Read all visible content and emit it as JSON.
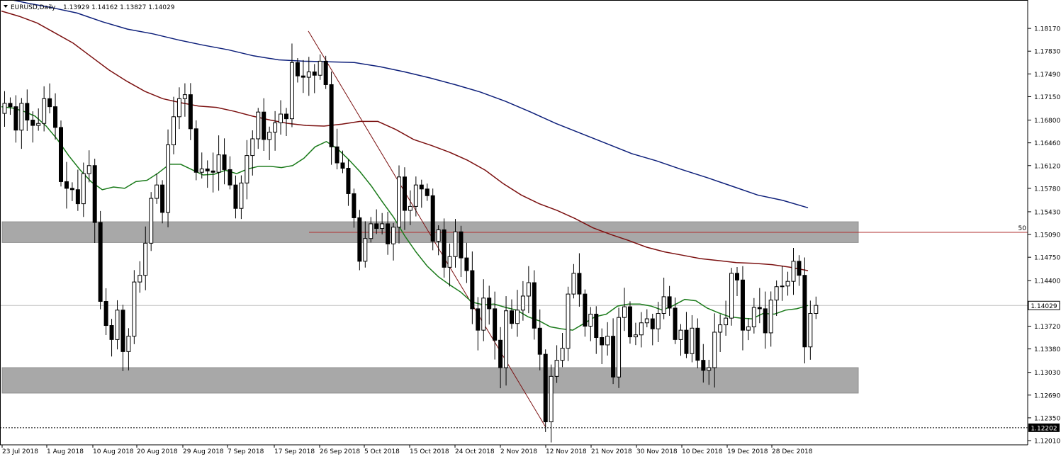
{
  "header": {
    "symbol_label": "EURUSD,Daily",
    "ohlc_label": "1.13929 1.14162 1.13827 1.14029"
  },
  "chart_data": {
    "type": "candlestick",
    "symbol": "EURUSD",
    "timeframe": "Daily",
    "ylim": [
      1.1201,
      1.1851
    ],
    "grid": false,
    "yticks": [
      "1.18170",
      "1.17830",
      "1.17490",
      "1.17150",
      "1.16800",
      "1.16460",
      "1.16120",
      "1.15780",
      "1.15430",
      "1.15090",
      "1.14750",
      "1.14400",
      "1.14060",
      "1.13720",
      "1.13380",
      "1.13030",
      "1.12690",
      "1.12350",
      "1.12010"
    ],
    "xticks": [
      "23 Jul 2018",
      "1 Aug 2018",
      "10 Aug 2018",
      "20 Aug 2018",
      "29 Aug 2018",
      "7 Sep 2018",
      "17 Sep 2018",
      "26 Sep 2018",
      "5 Oct 2018",
      "15 Oct 2018",
      "24 Oct 2018",
      "2 Nov 2018",
      "12 Nov 2018",
      "21 Nov 2018",
      "30 Nov 2018",
      "10 Dec 2018",
      "19 Dec 2018",
      "28 Dec 2018"
    ],
    "current_price": "1.14029",
    "low_marker": "1.12202",
    "fib_label": "50",
    "last_candle": {
      "open": 1.13929,
      "high": 1.14162,
      "low": 1.13827,
      "close": 1.14029
    },
    "zones": [
      {
        "top": 1.1528,
        "bottom": 1.1497
      },
      {
        "top": 1.131,
        "bottom": 1.1272
      }
    ],
    "fib_level": 1.15122,
    "trendline": [
      [
        1.1813,
        1
      ],
      [
        1.1221,
        0
      ]
    ],
    "closes": [
      1.1705,
      1.17,
      1.1665,
      1.1705,
      1.168,
      1.1672,
      1.1675,
      1.1712,
      1.17,
      1.1669,
      1.1588,
      1.1578,
      1.1576,
      1.1555,
      1.16,
      1.1612,
      1.1527,
      1.1409,
      1.1373,
      1.1352,
      1.1396,
      1.1334,
      1.1357,
      1.1438,
      1.1448,
      1.1496,
      1.1563,
      1.1583,
      1.1542,
      1.1643,
      1.1685,
      1.1712,
      1.1718,
      1.1667,
      1.1602,
      1.1607,
      1.1604,
      1.1602,
      1.1628,
      1.1606,
      1.1583,
      1.1548,
      1.1586,
      1.1627,
      1.1652,
      1.1692,
      1.1651,
      1.1662,
      1.1676,
      1.1689,
      1.1682,
      1.1766,
      1.1746,
      1.1744,
      1.1752,
      1.1747,
      1.1768,
      1.1733,
      1.164,
      1.1616,
      1.1608,
      1.157,
      1.1534,
      1.1469,
      1.1503,
      1.1525,
      1.1518,
      1.1525,
      1.1495,
      1.152,
      1.1595,
      1.1545,
      1.1551,
      1.1583,
      1.1577,
      1.1567,
      1.1499,
      1.1516,
      1.146,
      1.1476,
      1.1513,
      1.1474,
      1.1455,
      1.1398,
      1.1366,
      1.1414,
      1.1398,
      1.1351,
      1.131,
      1.1395,
      1.1376,
      1.1396,
      1.1417,
      1.1437,
      1.1369,
      1.133,
      1.1229,
      1.1297,
      1.1321,
      1.1339,
      1.142,
      1.1451,
      1.142,
      1.1372,
      1.139,
      1.1355,
      1.1344,
      1.1357,
      1.1296,
      1.1385,
      1.1401,
      1.1356,
      1.1359,
      1.1377,
      1.1383,
      1.1368,
      1.1391,
      1.1416,
      1.1399,
      1.1352,
      1.1366,
      1.1331,
      1.1369,
      1.1321,
      1.1306,
      1.131,
      1.1363,
      1.1374,
      1.1384,
      1.1451,
      1.1441,
      1.1366,
      1.1371,
      1.14,
      1.1398,
      1.1362,
      1.1411,
      1.1431,
      1.1432,
      1.1439,
      1.1469,
      1.1448,
      1.1341,
      1.1391,
      1.1403
    ],
    "series": [
      {
        "name": "",
        "color": "#1a7a1a",
        "values": [
          1.17,
          1.1698,
          1.1693,
          1.1686,
          1.1671,
          1.1651,
          1.1627,
          1.1606,
          1.1588,
          1.1576,
          1.158,
          1.1578,
          1.1588,
          1.159,
          1.1601,
          1.1614,
          1.1614,
          1.1606,
          1.1598,
          1.1599,
          1.1605,
          1.16,
          1.1607,
          1.1611,
          1.1611,
          1.1609,
          1.1612,
          1.1623,
          1.164,
          1.1648,
          1.1637,
          1.1621,
          1.1603,
          1.1582,
          1.1558,
          1.1535,
          1.1507,
          1.1483,
          1.1462,
          1.1446,
          1.1434,
          1.1423,
          1.1408,
          1.1404,
          1.1405,
          1.14,
          1.1396,
          1.1386,
          1.138,
          1.1371,
          1.1368,
          1.1366,
          1.1376,
          1.1386,
          1.139,
          1.1402,
          1.1405,
          1.1405,
          1.1402,
          1.1396,
          1.1403,
          1.1412,
          1.141,
          1.1399,
          1.1392,
          1.1386,
          1.1384,
          1.1383,
          1.1391,
          1.139,
          1.1396,
          1.1398,
          1.1403
        ]
      }
    ]
  },
  "ma_lines": [
    {
      "color": "#1a7a1a",
      "values": [
        1.1723,
        1.1722,
        1.1718,
        1.1717,
        1.171,
        1.17,
        1.1686,
        1.1662,
        1.164,
        1.1624,
        1.1613,
        1.1607,
        1.1607,
        1.1611,
        1.1623,
        1.163,
        1.1624,
        1.1618,
        1.1613,
        1.1615,
        1.1616,
        1.1617,
        1.1622,
        1.1632,
        1.1645,
        1.1662,
        1.167,
        1.1662,
        1.1646,
        1.1632,
        1.1617,
        1.16,
        1.1582,
        1.1563,
        1.1538,
        1.1509,
        1.149,
        1.1478,
        1.1463,
        1.1452,
        1.1445,
        1.144,
        1.1431,
        1.1418,
        1.1409,
        1.1404,
        1.1398,
        1.1396,
        1.1398,
        1.1401,
        1.1402,
        1.14,
        1.1393,
        1.1391,
        1.1393,
        1.1396,
        1.1401,
        1.1403
      ]
    },
    {
      "color": "#7b1010",
      "values": [
        1.1843,
        1.1835,
        1.1825,
        1.181,
        1.1795,
        1.1775,
        1.1755,
        1.1738,
        1.1723,
        1.1712,
        1.1706,
        1.1701,
        1.1699,
        1.1693,
        1.1686,
        1.168,
        1.1675,
        1.1672,
        1.1671,
        1.1674,
        1.1678,
        1.1678,
        1.1666,
        1.1651,
        1.1642,
        1.1632,
        1.162,
        1.1605,
        1.1585,
        1.1568,
        1.1555,
        1.1545,
        1.1533,
        1.1519,
        1.1509,
        1.15,
        1.149,
        1.1483,
        1.1478,
        1.1473,
        1.147,
        1.1467,
        1.1466,
        1.1464,
        1.146,
        1.1455
      ]
    },
    {
      "color": "#0d1f7a",
      "values": [
        1.1863,
        1.1855,
        1.1848,
        1.184,
        1.1827,
        1.1816,
        1.1809,
        1.18,
        1.1792,
        1.1785,
        1.1776,
        1.177,
        1.1768,
        1.1767,
        1.1766,
        1.176,
        1.1752,
        1.1743,
        1.1733,
        1.1722,
        1.1708,
        1.1692,
        1.1675,
        1.166,
        1.1645,
        1.163,
        1.1619,
        1.1606,
        1.1594,
        1.1581,
        1.1568,
        1.156,
        1.1549
      ]
    }
  ]
}
